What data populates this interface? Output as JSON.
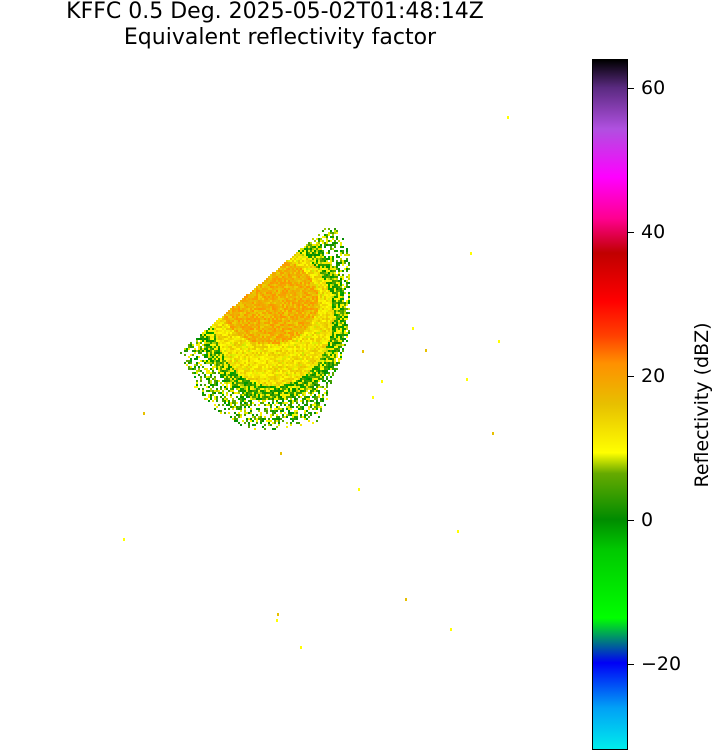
{
  "chart_data": {
    "type": "heatmap",
    "title": "KFFC 0.5 Deg. 2025-05-02T01:48:14Z",
    "subtitle": "Equivalent reflectivity factor",
    "colorbar": {
      "label": "Reflectivity (dBZ)",
      "range": [
        -32,
        64
      ],
      "ticks": [
        -20,
        0,
        20,
        40,
        60
      ],
      "tick_labels": [
        "−20",
        "0",
        "20",
        "40",
        "60"
      ]
    },
    "echo_regions": [
      {
        "region": "main precipitation area (north-west of radar)",
        "min_dbz": 0,
        "max_dbz": 25,
        "typical_dbz": 12
      },
      {
        "region": "scattered isolated returns",
        "min_dbz": 5,
        "max_dbz": 15,
        "typical_dbz": 10
      }
    ]
  }
}
